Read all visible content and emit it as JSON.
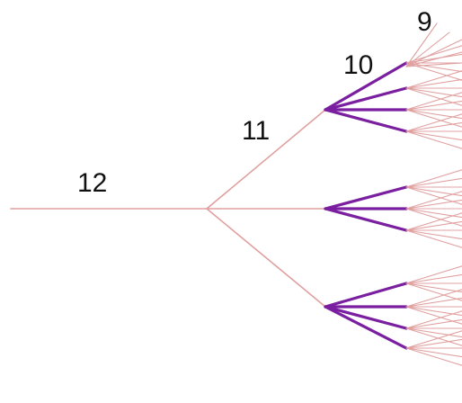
{
  "labels": {
    "level_12": "12",
    "level_11": "11",
    "level_10": "10",
    "level_9": "9"
  },
  "colors": {
    "thin_branch": "#e0a0a0",
    "thick_branch": "#7a1fa0",
    "background": "#ffffff"
  },
  "tree": {
    "branching_per_level": 3,
    "highlighted_level": "10"
  }
}
